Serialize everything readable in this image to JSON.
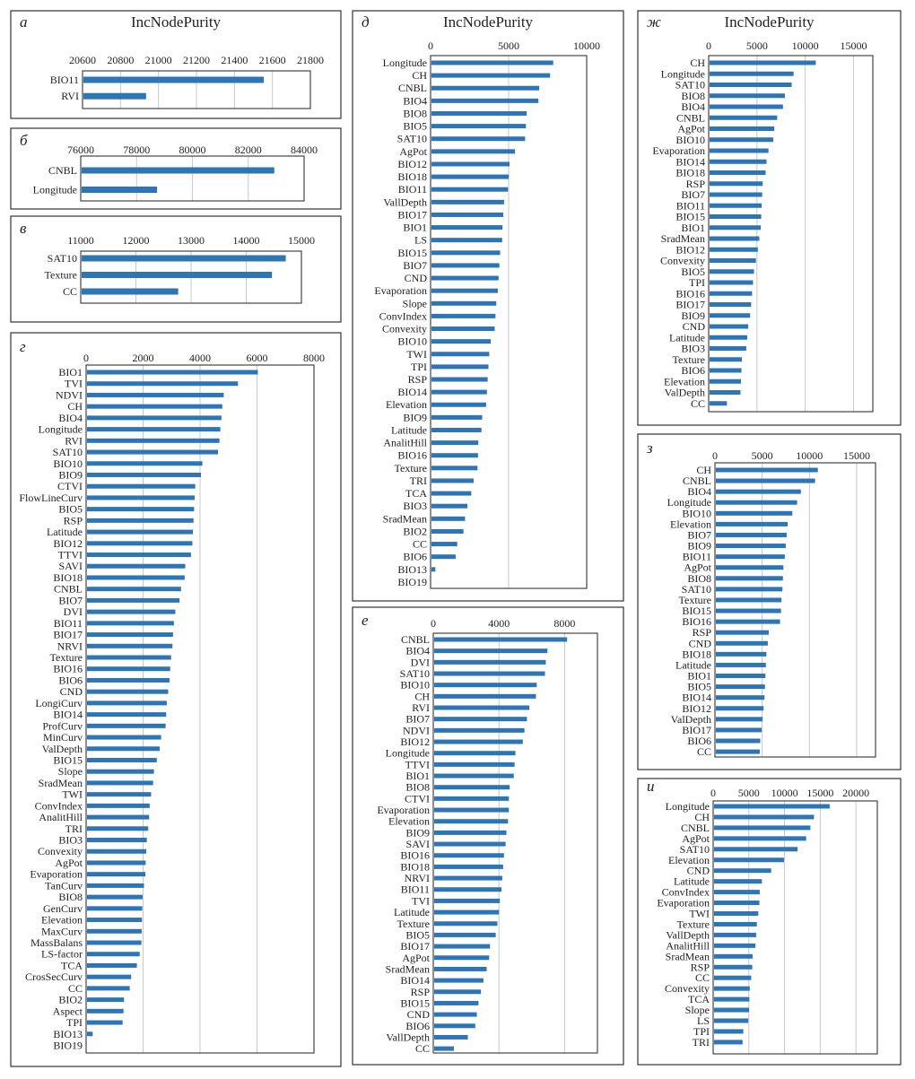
{
  "figure": {
    "measure": "IncNodePurity"
  },
  "chart_data": [
    {
      "panel": "а",
      "type": "bar",
      "orientation": "horizontal",
      "title": "IncNodePurity",
      "xlim": [
        20600,
        21800
      ],
      "xticks": [
        20600,
        20800,
        21000,
        21200,
        21400,
        21600,
        21800
      ],
      "grid": true,
      "categories": [
        "BIO11",
        "RVI"
      ],
      "values": [
        21550,
        20930
      ]
    },
    {
      "panel": "б",
      "type": "bar",
      "orientation": "horizontal",
      "title": "",
      "xlim": [
        76000,
        84000
      ],
      "xticks": [
        76000,
        78000,
        80000,
        82000,
        84000
      ],
      "grid": true,
      "categories": [
        "CNBL",
        "Longitude"
      ],
      "values": [
        82900,
        78700
      ]
    },
    {
      "panel": "в",
      "type": "bar",
      "orientation": "horizontal",
      "title": "",
      "xlim": [
        11000,
        15000
      ],
      "xticks": [
        11000,
        12000,
        13000,
        14000,
        15000
      ],
      "grid": true,
      "categories": [
        "SAT10",
        "Texture",
        "CC"
      ],
      "values": [
        14700,
        14450,
        12750
      ]
    },
    {
      "panel": "г",
      "type": "bar",
      "orientation": "horizontal",
      "title": "",
      "xlim": [
        0,
        8000
      ],
      "xticks": [
        0,
        2000,
        4000,
        6000,
        8000
      ],
      "grid": true,
      "categories": [
        "BIO1",
        "TVI",
        "NDVI",
        "CH",
        "BIO4",
        "Longitude",
        "RVI",
        "SAT10",
        "BIO10",
        "BIO9",
        "CTVI",
        "FlowLineCurv",
        "BIO5",
        "RSP",
        "Latitude",
        "BIO12",
        "TTVI",
        "SAVI",
        "BIO18",
        "CNBL",
        "BIO7",
        "DVI",
        "BIO11",
        "BIO17",
        "NRVI",
        "Texture",
        "BIO16",
        "BIO6",
        "CND",
        "LongiCurv",
        "BIO14",
        "ProfCurv",
        "MinCurv",
        "ValDepth",
        "BIO15",
        "Slope",
        "SradMean",
        "TWI",
        "ConvIndex",
        "AnalitHill",
        "TRI",
        "BIO3",
        "Convexity",
        "AgPot",
        "Evaporation",
        "TanCurv",
        "BIO8",
        "GenCurv",
        "Elevation",
        "MaxCurv",
        "MassBalans",
        "LS-factor",
        "TCA",
        "CrosSecCurv",
        "CC",
        "BIO2",
        "Aspect",
        "TPI",
        "BIO13",
        "BIO19"
      ],
      "values": [
        6000,
        5300,
        4800,
        4750,
        4720,
        4680,
        4650,
        4600,
        4050,
        4000,
        3800,
        3780,
        3760,
        3740,
        3720,
        3700,
        3650,
        3450,
        3430,
        3300,
        3250,
        3100,
        3050,
        3020,
        3000,
        2950,
        2920,
        2900,
        2850,
        2800,
        2780,
        2760,
        2600,
        2550,
        2450,
        2350,
        2320,
        2250,
        2200,
        2180,
        2150,
        2100,
        2080,
        2060,
        2050,
        2000,
        1950,
        1940,
        1930,
        1920,
        1910,
        1850,
        1750,
        1550,
        1500,
        1300,
        1280,
        1250,
        200,
        0
      ]
    },
    {
      "panel": "д",
      "type": "bar",
      "orientation": "horizontal",
      "title": "IncNodePurity",
      "xlim": [
        0,
        10000
      ],
      "xticks": [
        0,
        5000,
        10000
      ],
      "grid": true,
      "categories": [
        "Longitude",
        "CH",
        "CNBL",
        "BIO4",
        "BIO8",
        "BIO5",
        "SAT10",
        "AgPot",
        "BIO12",
        "BIO18",
        "BIO11",
        "VallDepth",
        "BIO17",
        "BIO1",
        "LS",
        "BIO15",
        "BIO7",
        "CND",
        "Evaporation",
        "Slope",
        "ConvIndex",
        "Convexity",
        "BIO10",
        "TWI",
        "TPI",
        "RSP",
        "BIO14",
        "Elevation",
        "BIO9",
        "Latitude",
        "AnalitHill",
        "BIO16",
        "Texture",
        "TRI",
        "TCA",
        "BIO3",
        "SradMean",
        "BIO2",
        "CC",
        "BIO6",
        "BIO13",
        "BIO19"
      ],
      "values": [
        7800,
        7600,
        6900,
        6850,
        6100,
        6050,
        6000,
        5350,
        5000,
        4950,
        4900,
        4650,
        4600,
        4550,
        4530,
        4400,
        4350,
        4300,
        4250,
        4150,
        4100,
        4050,
        3800,
        3700,
        3650,
        3600,
        3550,
        3500,
        3250,
        3200,
        3000,
        2980,
        2950,
        2700,
        2550,
        2300,
        2150,
        2050,
        1650,
        1550,
        250,
        0
      ]
    },
    {
      "panel": "е",
      "type": "bar",
      "orientation": "horizontal",
      "title": "",
      "xlim": [
        0,
        10000
      ],
      "xticks": [
        0,
        4000,
        8000
      ],
      "grid": true,
      "categories": [
        "CNBL",
        "BIO4",
        "DVI",
        "SAT10",
        "BIO10",
        "CH",
        "RVI",
        "BIO7",
        "NDVI",
        "BIO12",
        "Longitude",
        "TTVI",
        "BIO1",
        "BIO8",
        "CTVI",
        "Evaporation",
        "Elevation",
        "BIO9",
        "SAVI",
        "BIO16",
        "BIO18",
        "NRVI",
        "BIO11",
        "TVI",
        "Latitude",
        "Texture",
        "BIO5",
        "BIO17",
        "AgPot",
        "SradMean",
        "BIO14",
        "RSP",
        "BIO15",
        "CND",
        "BIO6",
        "VallDepth",
        "CC"
      ],
      "values": [
        8100,
        6900,
        6800,
        6750,
        6250,
        6200,
        5800,
        5650,
        5500,
        5400,
        4950,
        4900,
        4850,
        4600,
        4550,
        4550,
        4500,
        4400,
        4350,
        4250,
        4200,
        4150,
        4100,
        4000,
        3950,
        3850,
        3750,
        3400,
        3350,
        3200,
        3000,
        2850,
        2700,
        2600,
        2500,
        2050,
        1200
      ]
    },
    {
      "panel": "ж",
      "type": "bar",
      "orientation": "horizontal",
      "title": "IncNodePurity",
      "xlim": [
        0,
        17000
      ],
      "xticks": [
        0,
        5000,
        10000,
        15000
      ],
      "grid": true,
      "categories": [
        "CH",
        "Longitude",
        "SAT10",
        "BIO8",
        "BIO4",
        "CNBL",
        "AgPot",
        "BIO10",
        "Evaporation",
        "BIO14",
        "BIO18",
        "RSP",
        "BIO7",
        "BIO11",
        "BIO15",
        "BIO1",
        "SradMean",
        "BIO12",
        "Convexity",
        "BIO5",
        "TPI",
        "BIO16",
        "BIO17",
        "BIO9",
        "CND",
        "Latitude",
        "BIO3",
        "Texture",
        "BIO6",
        "Elevation",
        "ValDepth",
        "CC"
      ],
      "values": [
        11000,
        8700,
        8500,
        7800,
        7600,
        7000,
        6700,
        6600,
        6100,
        5900,
        5800,
        5500,
        5450,
        5400,
        5350,
        5300,
        5150,
        5000,
        4800,
        4600,
        4500,
        4400,
        4300,
        4200,
        4000,
        3900,
        3800,
        3350,
        3300,
        3250,
        3200,
        1800
      ]
    },
    {
      "panel": "з",
      "type": "bar",
      "orientation": "horizontal",
      "title": "",
      "xlim": [
        0,
        17000
      ],
      "xticks": [
        0,
        5000,
        10000,
        15000
      ],
      "grid": true,
      "categories": [
        "CH",
        "CNBL",
        "BIO4",
        "Longitude",
        "BIO10",
        "Elevation",
        "BIO7",
        "BIO9",
        "BIO11",
        "AgPot",
        "BIO8",
        "SAT10",
        "Texture",
        "BIO15",
        "BIO16",
        "RSP",
        "CND",
        "BIO18",
        "Latitude",
        "BIO1",
        "BIO5",
        "BIO14",
        "BIO12",
        "ValDepth",
        "BIO17",
        "BIO6",
        "CC"
      ],
      "values": [
        10800,
        10500,
        9000,
        8600,
        8100,
        7600,
        7500,
        7400,
        7300,
        7150,
        7100,
        7050,
        6950,
        6900,
        6800,
        5600,
        5500,
        5350,
        5300,
        5250,
        5200,
        5150,
        5050,
        4950,
        4850,
        4700,
        4650
      ]
    },
    {
      "panel": "и",
      "type": "bar",
      "orientation": "horizontal",
      "title": "",
      "xlim": [
        0,
        23000
      ],
      "xticks": [
        0,
        5000,
        10000,
        15000,
        20000
      ],
      "grid": true,
      "categories": [
        "Longitude",
        "CH",
        "CNBL",
        "AgPot",
        "SAT10",
        "Elevation",
        "CND",
        "Latitude",
        "ConvIndex",
        "Evaporation",
        "TWI",
        "Texture",
        "VallDepth",
        "AnalitHill",
        "SradMean",
        "RSP",
        "CC",
        "Convexity",
        "TCA",
        "Slope",
        "LS",
        "TPI",
        "TRI"
      ],
      "values": [
        16200,
        14000,
        13500,
        12900,
        11700,
        9800,
        8000,
        6700,
        6400,
        6350,
        6200,
        6000,
        5900,
        5800,
        5400,
        5350,
        5200,
        5000,
        4950,
        4900,
        4800,
        4100,
        4000
      ]
    }
  ]
}
